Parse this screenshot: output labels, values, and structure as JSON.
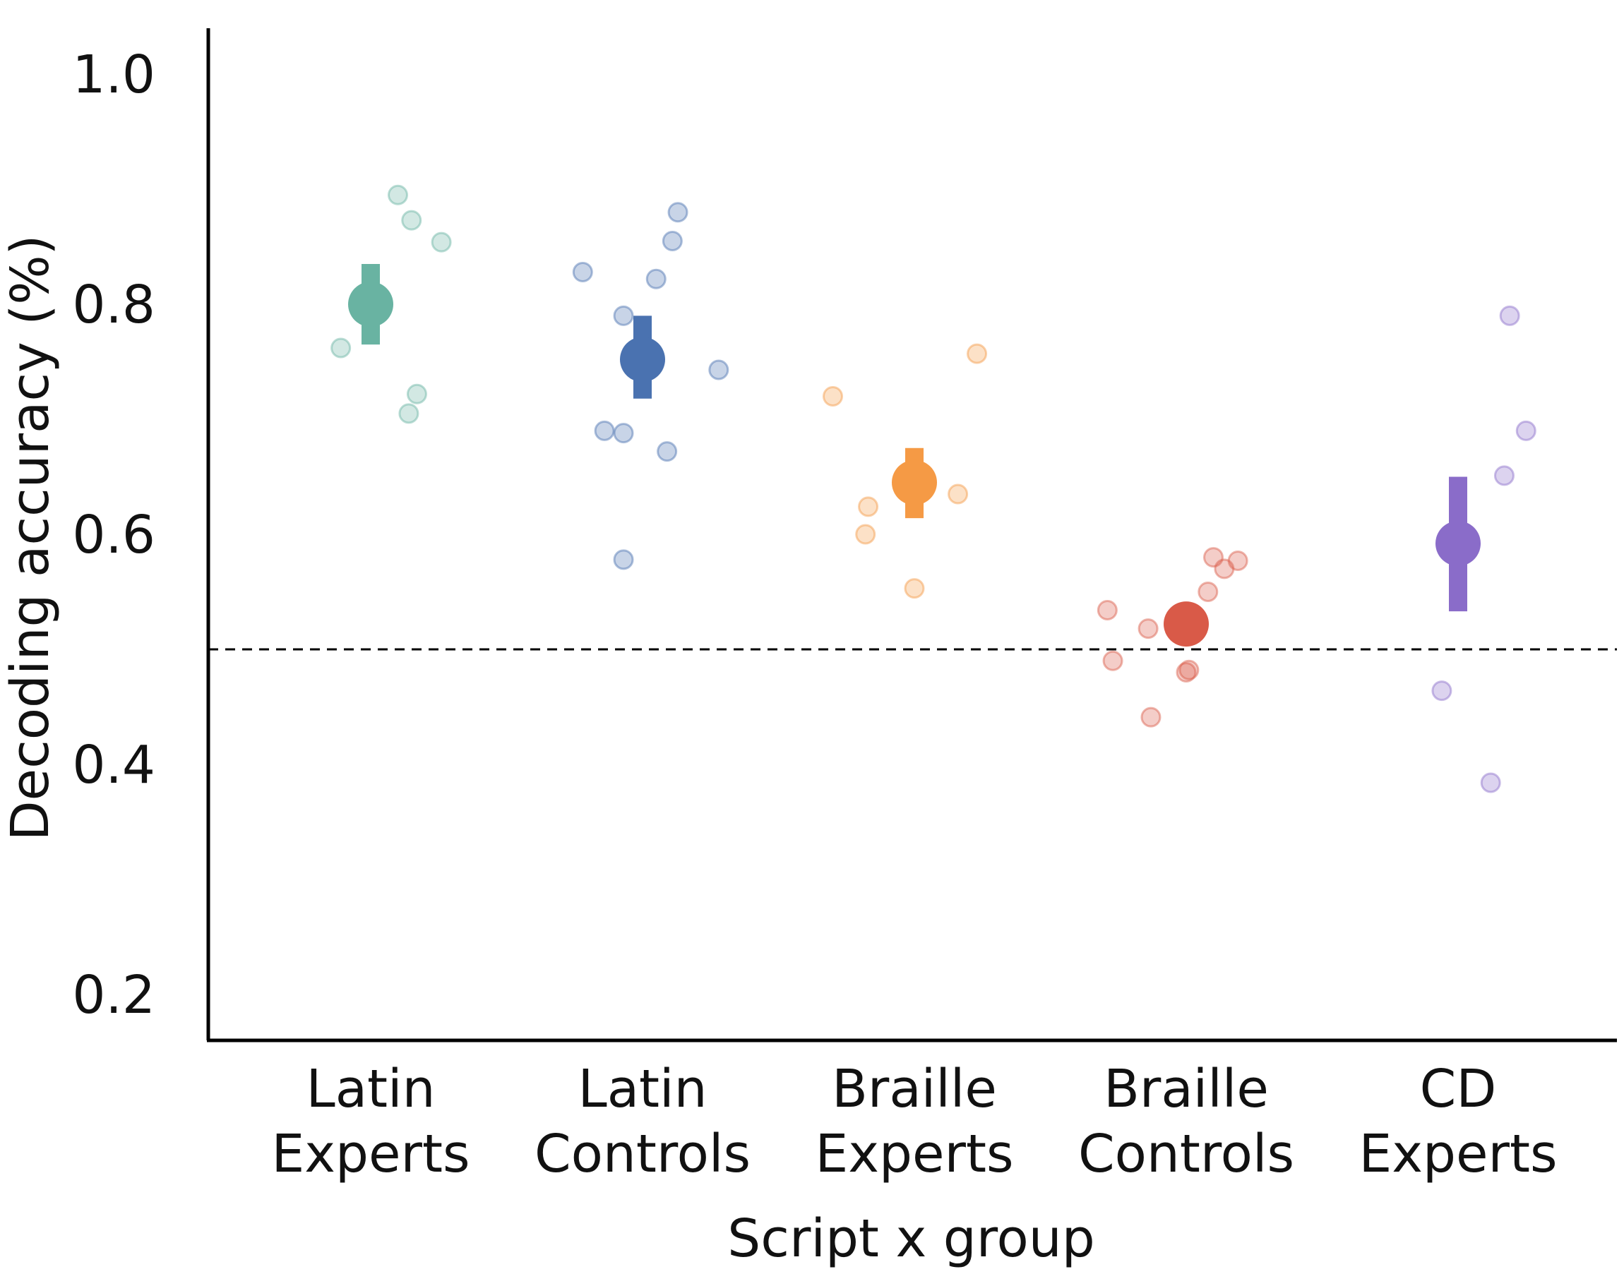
{
  "chart_data": {
    "type": "scatter",
    "xlabel": "Script x group",
    "ylabel": "Decoding accuracy (%)",
    "ylim": [
      0.16,
      1.04
    ],
    "yticks": [
      "0.2",
      "0.4",
      "0.6",
      "0.8",
      "1.0"
    ],
    "ytick_values": [
      0.2,
      0.4,
      0.6,
      0.8,
      1.0
    ],
    "chance_line": 0.5,
    "grid": false,
    "legend": "none",
    "categories": [
      {
        "line1": "Latin",
        "line2": "Experts"
      },
      {
        "line1": "Latin",
        "line2": "Controls"
      },
      {
        "line1": "Braille",
        "line2": "Experts"
      },
      {
        "line1": "Braille",
        "line2": "Controls"
      },
      {
        "line1": "CD",
        "line2": "Experts"
      }
    ],
    "groups": [
      {
        "color": "#69b3a2",
        "mean": 0.8,
        "err_low": 0.765,
        "err_high": 0.835,
        "points": [
          [
            0.1,
            0.895
          ],
          [
            0.15,
            0.873
          ],
          [
            0.26,
            0.854
          ],
          [
            -0.11,
            0.762
          ],
          [
            0.17,
            0.722
          ],
          [
            0.14,
            0.705
          ]
        ]
      },
      {
        "color": "#4a72b0",
        "mean": 0.752,
        "err_low": 0.718,
        "err_high": 0.79,
        "points": [
          [
            -0.22,
            0.828
          ],
          [
            0.13,
            0.88
          ],
          [
            0.11,
            0.855
          ],
          [
            0.05,
            0.822
          ],
          [
            -0.07,
            0.79
          ],
          [
            0.28,
            0.743
          ],
          [
            -0.14,
            0.69
          ],
          [
            -0.07,
            0.688
          ],
          [
            0.09,
            0.672
          ],
          [
            -0.07,
            0.578
          ]
        ]
      },
      {
        "color": "#f59a45",
        "mean": 0.645,
        "err_low": 0.614,
        "err_high": 0.675,
        "points": [
          [
            -0.3,
            0.72
          ],
          [
            0.23,
            0.757
          ],
          [
            0.16,
            0.635
          ],
          [
            -0.17,
            0.624
          ],
          [
            -0.18,
            0.6
          ],
          [
            0.0,
            0.553
          ]
        ]
      },
      {
        "color": "#d95a48",
        "mean": 0.522,
        "err_low": 0.522,
        "err_high": 0.522,
        "points": [
          [
            0.1,
            0.58
          ],
          [
            0.19,
            0.577
          ],
          [
            0.14,
            0.57
          ],
          [
            0.08,
            0.55
          ],
          [
            -0.29,
            0.534
          ],
          [
            -0.14,
            0.518
          ],
          [
            -0.27,
            0.49
          ],
          [
            0.0,
            0.48
          ],
          [
            0.01,
            0.482
          ],
          [
            -0.13,
            0.441
          ]
        ]
      },
      {
        "color": "#8a6cc9",
        "mean": 0.592,
        "err_low": 0.533,
        "err_high": 0.65,
        "points": [
          [
            0.19,
            0.79
          ],
          [
            0.25,
            0.69
          ],
          [
            0.17,
            0.651
          ],
          [
            -0.06,
            0.464
          ],
          [
            0.12,
            0.384
          ]
        ]
      }
    ]
  }
}
